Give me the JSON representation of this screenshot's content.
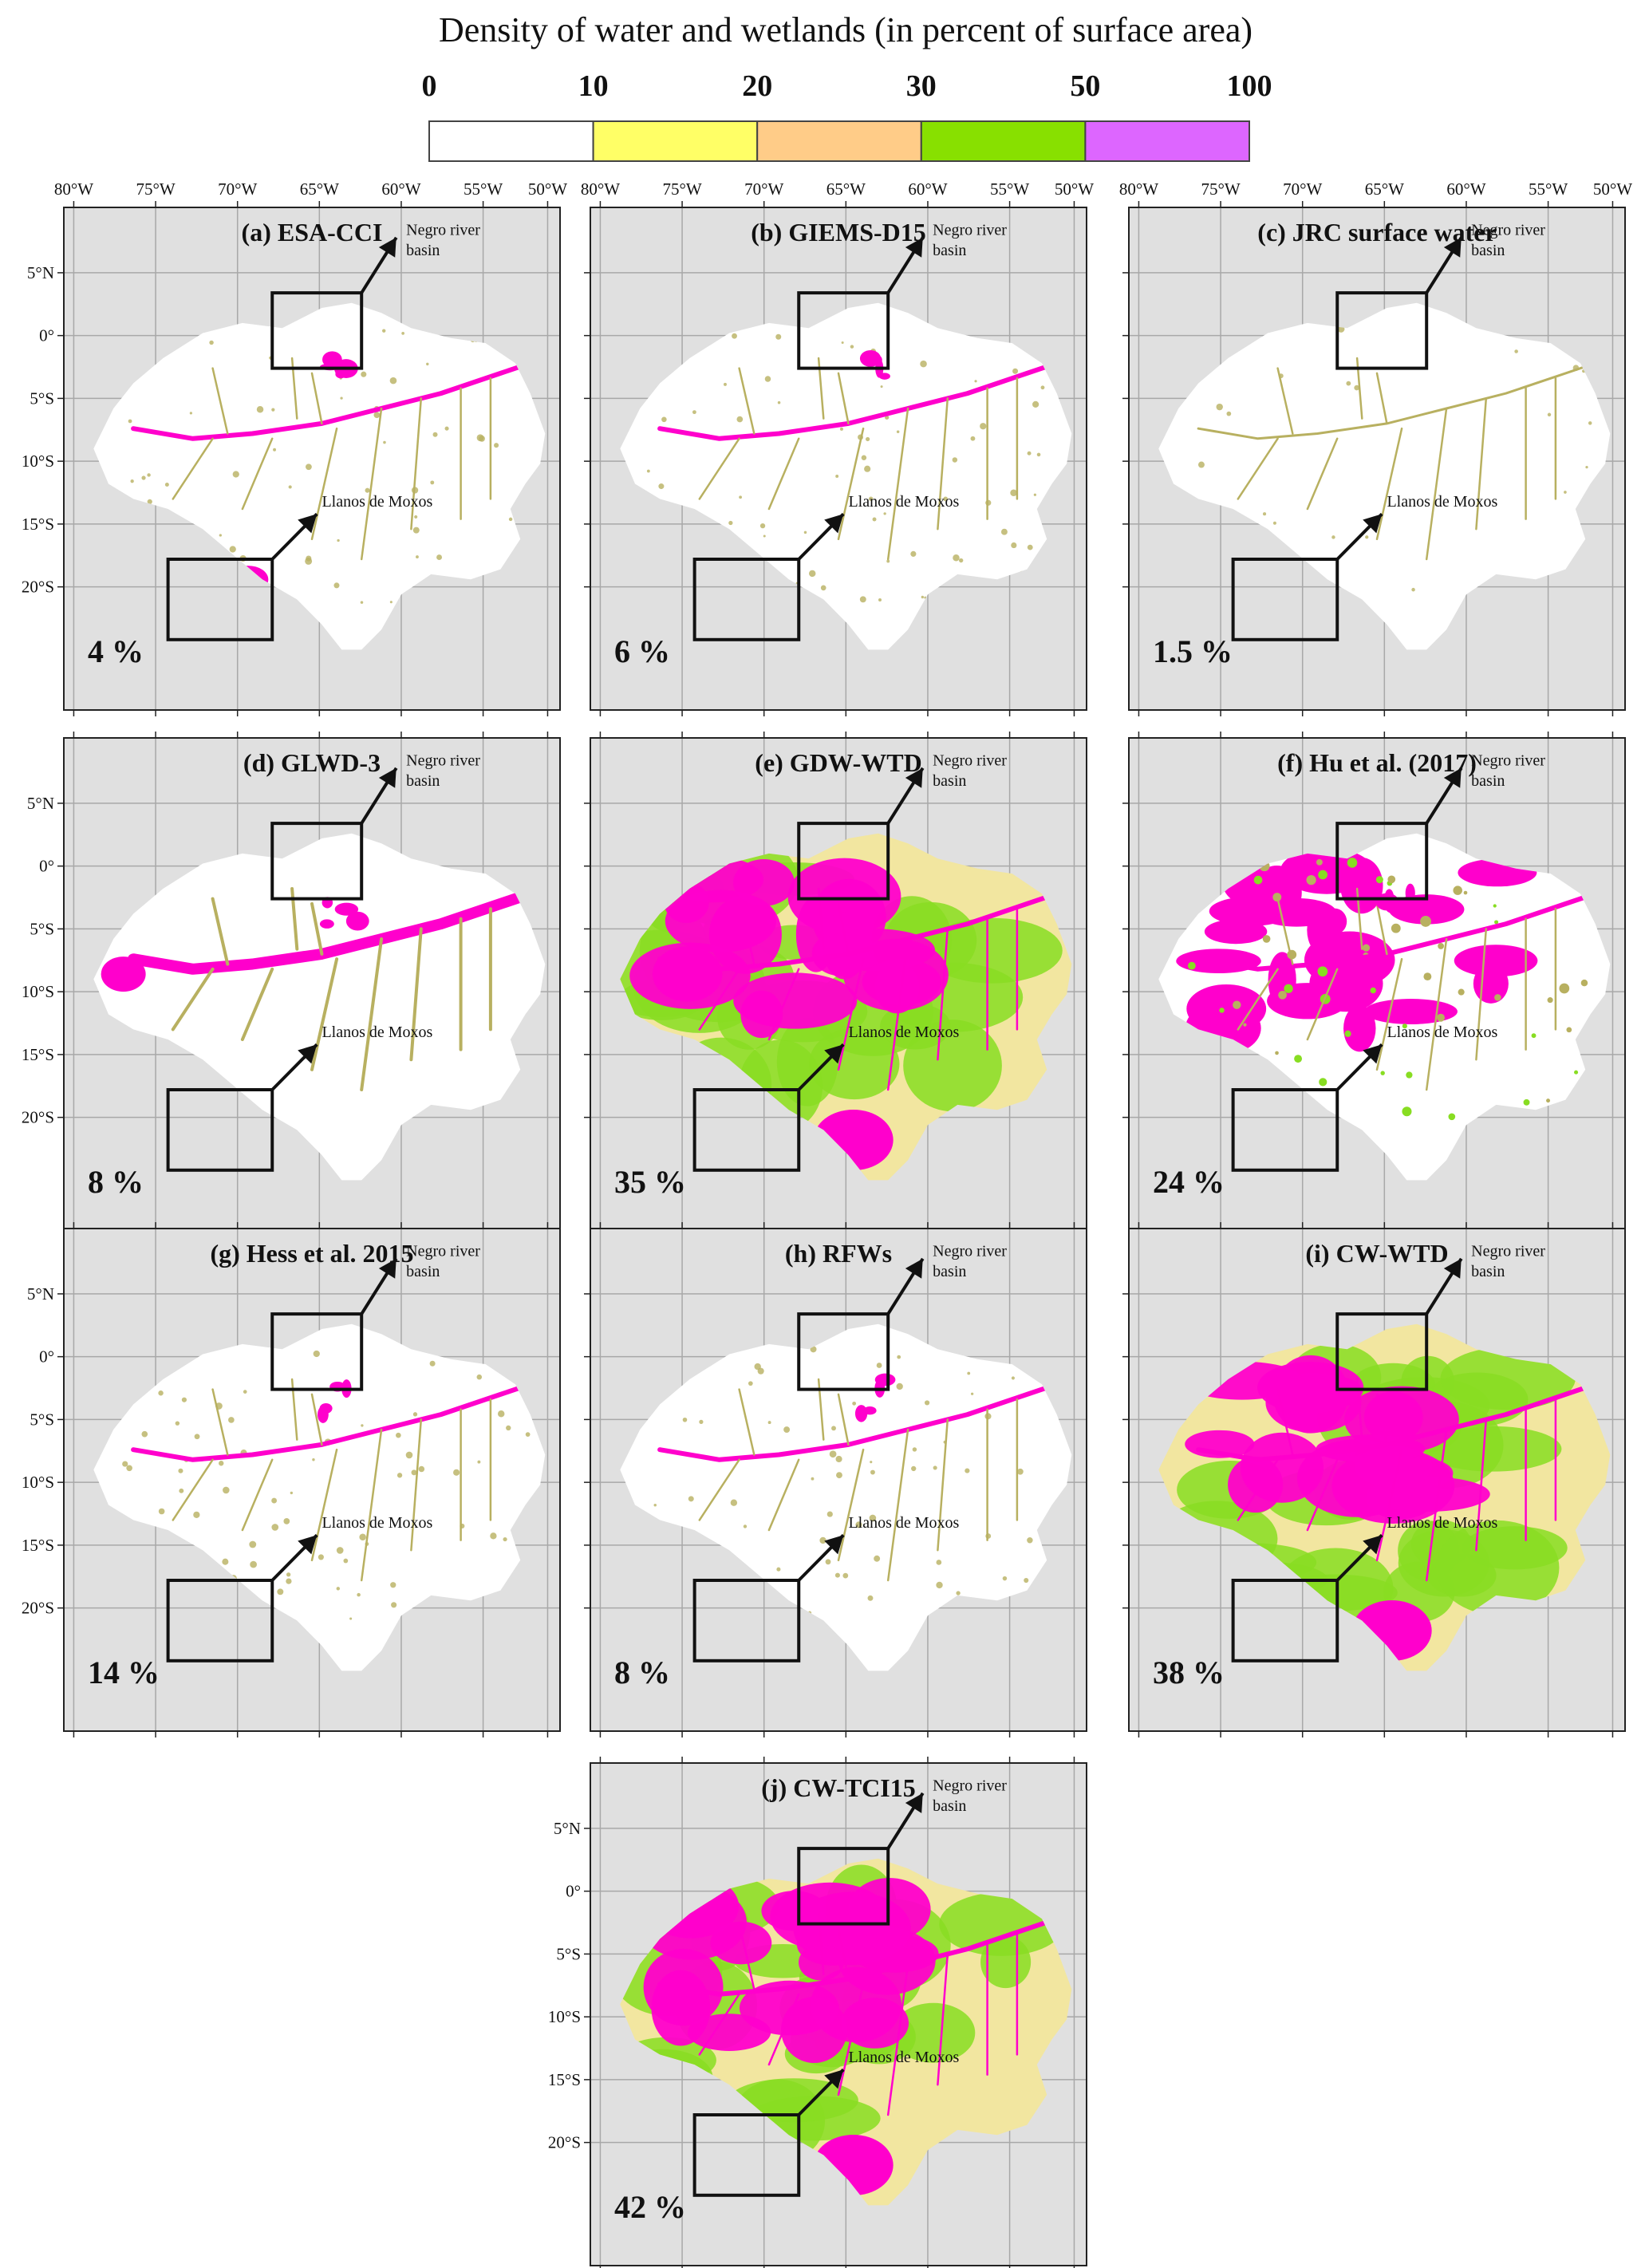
{
  "legend": {
    "title": "Density of water and wetlands (in percent of surface area)",
    "breaks": [
      "0",
      "10",
      "20",
      "30",
      "50",
      "100"
    ],
    "colors": [
      "#ffffff",
      "#ffff66",
      "#ffcc88",
      "#88e000",
      "#dd66ff"
    ]
  },
  "map_colors": {
    "background": "#e0e0e0",
    "basin": "#ffffff",
    "high_density": "#ff00cc",
    "medium_density": "#88dd22",
    "low_density": "#f2e6a0",
    "river": "#b8b060"
  },
  "longitude_ticks": [
    "80°W",
    "75°W",
    "70°W",
    "65°W",
    "60°W",
    "55°W",
    "50°W"
  ],
  "latitude_ticks": [
    "5°N",
    "0°",
    "5°S",
    "10°S",
    "15°S",
    "20°S"
  ],
  "annotations": {
    "negro": [
      "Negro river",
      "basin"
    ],
    "moxos": "Llanos de Moxos"
  },
  "panels": [
    {
      "title": "(a) ESA-CCI",
      "percent": "4 %",
      "style": "sparse",
      "show_lon": true,
      "show_lat": true
    },
    {
      "title": "(b) GIEMS-D15",
      "percent": "6 %",
      "style": "sparse",
      "show_lon": true,
      "show_lat": false
    },
    {
      "title": "(c) JRC surface water",
      "percent": "1.5 %",
      "style": "minimal",
      "show_lon": true,
      "show_lat": false
    },
    {
      "title": "(d) GLWD-3",
      "percent": "8 %",
      "style": "rivers",
      "show_lon": false,
      "show_lat": true
    },
    {
      "title": "(e) GDW-WTD",
      "percent": "35 %",
      "style": "dense",
      "show_lon": false,
      "show_lat": false
    },
    {
      "title": "(f) Hu et al. (2017)",
      "percent": "24 %",
      "style": "patchy",
      "show_lon": false,
      "show_lat": false
    },
    {
      "title": "(g) Hess et al. 2015",
      "percent": "14 %",
      "style": "sparse",
      "show_lon": false,
      "show_lat": true
    },
    {
      "title": "(h) RFWs",
      "percent": "8 %",
      "style": "sparse",
      "show_lon": false,
      "show_lat": false
    },
    {
      "title": "(i) CW-WTD",
      "percent": "38 %",
      "style": "dense",
      "show_lon": false,
      "show_lat": false
    },
    {
      "title": "(j) CW-TCI15",
      "percent": "42 %",
      "style": "dense",
      "show_lon": false,
      "show_lat": true
    }
  ]
}
